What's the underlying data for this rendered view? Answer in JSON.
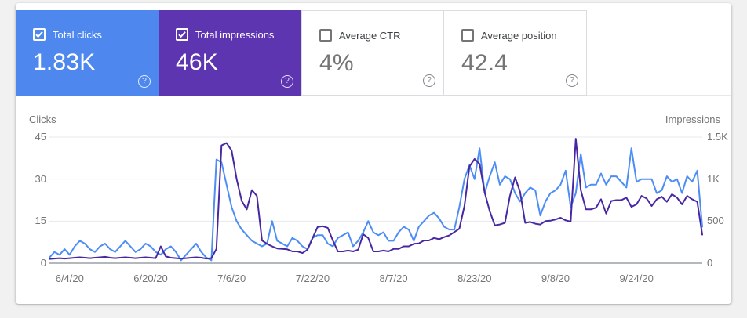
{
  "cards": [
    {
      "label": "Total clicks",
      "value": "1.83K",
      "checked": true,
      "bg": "#4e88ee"
    },
    {
      "label": "Total impressions",
      "value": "46K",
      "checked": true,
      "bg": "#5e35b1"
    },
    {
      "label": "Average CTR",
      "value": "4%",
      "checked": false,
      "bg": "#ffffff"
    },
    {
      "label": "Average position",
      "value": "42.4",
      "checked": false,
      "bg": "#ffffff"
    }
  ],
  "icons": {
    "help": "?"
  },
  "colors": {
    "clicks_line": "#4c8df6",
    "impressions_line": "#4728a2",
    "gridline": "#e8eaed",
    "axis_line": "#9aa0a6",
    "tick_text": "#757575"
  },
  "chart_data": {
    "type": "line",
    "grid": true,
    "legend": "none",
    "left_axis": {
      "title": "Clicks",
      "max": 45,
      "ticks": [
        "45",
        "30",
        "15",
        "0"
      ]
    },
    "right_axis": {
      "title": "Impressions",
      "max": 1500,
      "ticks": [
        "1.5K",
        "1K",
        "500",
        "0"
      ]
    },
    "x_ticks": {
      "labels": [
        "6/4/20",
        "6/20/20",
        "7/6/20",
        "7/22/20",
        "8/7/20",
        "8/23/20",
        "9/8/20",
        "9/24/20"
      ],
      "indices": [
        4,
        20,
        36,
        52,
        68,
        84,
        100,
        116
      ]
    },
    "series": [
      {
        "name": "Total clicks",
        "axis": "left",
        "color": "#4c8df6",
        "values": [
          2,
          4,
          3,
          5,
          3,
          6,
          8,
          7,
          5,
          4,
          6,
          7,
          5,
          4,
          6,
          8,
          6,
          4,
          5,
          7,
          6,
          4,
          3,
          5,
          6,
          4,
          1,
          3,
          5,
          7,
          4,
          2,
          1,
          37,
          36,
          28,
          20,
          15,
          12,
          10,
          8,
          7,
          6,
          7,
          15,
          8,
          7,
          6,
          9,
          8,
          6,
          5,
          9,
          10,
          10,
          7,
          6,
          9,
          10,
          11,
          6,
          8,
          11,
          15,
          11,
          10,
          11,
          8,
          8,
          11,
          13,
          12,
          8,
          13,
          15,
          17,
          18,
          16,
          13,
          12,
          12,
          20,
          30,
          35,
          30,
          41,
          25,
          31,
          36,
          28,
          31,
          30,
          25,
          22,
          25,
          27,
          26,
          17,
          22,
          25,
          26,
          28,
          33,
          20,
          25,
          39,
          27,
          28,
          28,
          32,
          28,
          31,
          31,
          29,
          27,
          41,
          29,
          30,
          30,
          30,
          25,
          26,
          31,
          29,
          30,
          25,
          31,
          29,
          33,
          13
        ]
      },
      {
        "name": "Total impressions",
        "axis": "right",
        "color": "#4728a2",
        "values": [
          50,
          55,
          60,
          55,
          60,
          65,
          70,
          65,
          60,
          65,
          70,
          75,
          65,
          60,
          65,
          70,
          65,
          60,
          65,
          70,
          65,
          60,
          200,
          80,
          65,
          60,
          55,
          60,
          65,
          70,
          65,
          55,
          60,
          170,
          1400,
          1430,
          1340,
          1000,
          740,
          640,
          870,
          800,
          270,
          230,
          200,
          175,
          170,
          165,
          140,
          140,
          120,
          160,
          300,
          430,
          440,
          420,
          270,
          140,
          140,
          150,
          140,
          160,
          345,
          300,
          140,
          140,
          150,
          140,
          170,
          170,
          200,
          200,
          230,
          235,
          270,
          270,
          300,
          285,
          310,
          330,
          370,
          410,
          680,
          1150,
          1240,
          1180,
          840,
          620,
          450,
          460,
          480,
          800,
          1020,
          850,
          480,
          490,
          470,
          460,
          500,
          505,
          520,
          540,
          510,
          495,
          1480,
          870,
          640,
          640,
          660,
          760,
          590,
          740,
          750,
          750,
          780,
          670,
          700,
          800,
          770,
          680,
          760,
          790,
          730,
          820,
          780,
          700,
          800,
          760,
          730,
          340
        ]
      }
    ]
  }
}
